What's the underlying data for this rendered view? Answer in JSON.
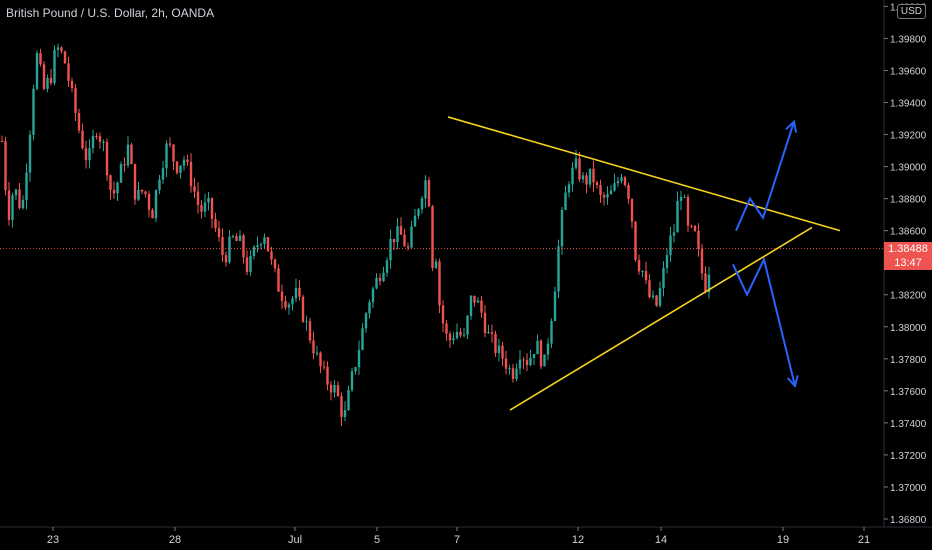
{
  "title": "British Pound / U.S. Dollar, 2h, OANDA",
  "currency_button": "USD",
  "price_label": {
    "price": "1.38488",
    "countdown": "13:47"
  },
  "colors": {
    "up": "#26a69a",
    "down": "#ef5350",
    "trendline": "#f7d31e",
    "projection": "#2962ff",
    "background": "#000000",
    "axis_text": "#d1d4dc"
  },
  "chart_data": {
    "type": "candlestick",
    "symbol": "British Pound / U.S. Dollar",
    "interval": "2h",
    "source": "OANDA",
    "ylim": [
      1.3675,
      1.4004
    ],
    "y_ticks": [
      "1.40000",
      "1.39800",
      "1.39600",
      "1.39400",
      "1.39200",
      "1.39000",
      "1.38800",
      "1.38600",
      "1.38400",
      "1.38200",
      "1.38000",
      "1.37800",
      "1.37600",
      "1.37400",
      "1.37200",
      "1.37000",
      "1.36800"
    ],
    "x_ticks": [
      "23",
      "28",
      "Jul",
      "5",
      "7",
      "12",
      "14",
      "19",
      "21"
    ],
    "last_price": 1.38488,
    "anchors": [
      [
        0,
        1.3932
      ],
      [
        8,
        1.3868
      ],
      [
        14,
        1.3888
      ],
      [
        22,
        1.3872
      ],
      [
        30,
        1.3924
      ],
      [
        36,
        1.3972
      ],
      [
        44,
        1.3948
      ],
      [
        52,
        1.3958
      ],
      [
        56,
        1.3975
      ],
      [
        64,
        1.3968
      ],
      [
        72,
        1.3944
      ],
      [
        80,
        1.392
      ],
      [
        88,
        1.3902
      ],
      [
        96,
        1.3925
      ],
      [
        104,
        1.3912
      ],
      [
        112,
        1.388
      ],
      [
        120,
        1.3895
      ],
      [
        128,
        1.3912
      ],
      [
        136,
        1.388
      ],
      [
        144,
        1.3886
      ],
      [
        152,
        1.387
      ],
      [
        160,
        1.3898
      ],
      [
        168,
        1.3915
      ],
      [
        176,
        1.39
      ],
      [
        184,
        1.3905
      ],
      [
        192,
        1.389
      ],
      [
        200,
        1.3872
      ],
      [
        208,
        1.3876
      ],
      [
        216,
        1.386
      ],
      [
        224,
        1.3842
      ],
      [
        232,
        1.3855
      ],
      [
        240,
        1.3852
      ],
      [
        248,
        1.3835
      ],
      [
        256,
        1.385
      ],
      [
        264,
        1.386
      ],
      [
        272,
        1.3838
      ],
      [
        280,
        1.3822
      ],
      [
        288,
        1.3815
      ],
      [
        296,
        1.382
      ],
      [
        304,
        1.3806
      ],
      [
        312,
        1.379
      ],
      [
        320,
        1.3775
      ],
      [
        328,
        1.3765
      ],
      [
        336,
        1.376
      ],
      [
        344,
        1.3742
      ],
      [
        352,
        1.3768
      ],
      [
        360,
        1.379
      ],
      [
        368,
        1.3815
      ],
      [
        376,
        1.3828
      ],
      [
        384,
        1.384
      ],
      [
        392,
        1.3856
      ],
      [
        400,
        1.3858
      ],
      [
        408,
        1.3848
      ],
      [
        416,
        1.387
      ],
      [
        424,
        1.389
      ],
      [
        428,
        1.3893
      ],
      [
        432,
        1.384
      ],
      [
        436,
        1.3845
      ],
      [
        440,
        1.381
      ],
      [
        448,
        1.379
      ],
      [
        456,
        1.3798
      ],
      [
        464,
        1.3792
      ],
      [
        472,
        1.382
      ],
      [
        480,
        1.3812
      ],
      [
        488,
        1.3795
      ],
      [
        496,
        1.3786
      ],
      [
        504,
        1.378
      ],
      [
        512,
        1.377
      ],
      [
        520,
        1.3785
      ],
      [
        528,
        1.3778
      ],
      [
        536,
        1.379
      ],
      [
        544,
        1.3775
      ],
      [
        552,
        1.381
      ],
      [
        556,
        1.3832
      ],
      [
        560,
        1.386
      ],
      [
        568,
        1.3892
      ],
      [
        576,
        1.39
      ],
      [
        584,
        1.389
      ],
      [
        592,
        1.3895
      ],
      [
        600,
        1.388
      ],
      [
        608,
        1.388
      ],
      [
        616,
        1.3888
      ],
      [
        622,
        1.3898
      ],
      [
        630,
        1.388
      ],
      [
        636,
        1.3842
      ],
      [
        642,
        1.3836
      ],
      [
        648,
        1.382
      ],
      [
        656,
        1.3812
      ],
      [
        662,
        1.3828
      ],
      [
        668,
        1.385
      ],
      [
        674,
        1.386
      ],
      [
        680,
        1.3888
      ],
      [
        684,
        1.3878
      ],
      [
        688,
        1.386
      ],
      [
        696,
        1.3856
      ],
      [
        700,
        1.3838
      ],
      [
        706,
        1.3825
      ],
      [
        712,
        1.3848
      ]
    ],
    "annotations": [
      {
        "type": "trendline",
        "name": "upper-resistance",
        "points": [
          [
            448,
            1.3931
          ],
          [
            840,
            1.386
          ]
        ]
      },
      {
        "type": "trendline",
        "name": "lower-support",
        "points": [
          [
            510,
            1.3748
          ],
          [
            812,
            1.3862
          ]
        ]
      },
      {
        "type": "arrow",
        "name": "bullish-projection",
        "points": [
          [
            736,
            1.386
          ],
          [
            750,
            1.388
          ],
          [
            763,
            1.3868
          ],
          [
            794,
            1.3928
          ]
        ]
      },
      {
        "type": "arrow",
        "name": "bearish-projection",
        "points": [
          [
            733,
            1.3839
          ],
          [
            747,
            1.382
          ],
          [
            764,
            1.3842
          ],
          [
            795,
            1.3763
          ]
        ]
      }
    ]
  }
}
